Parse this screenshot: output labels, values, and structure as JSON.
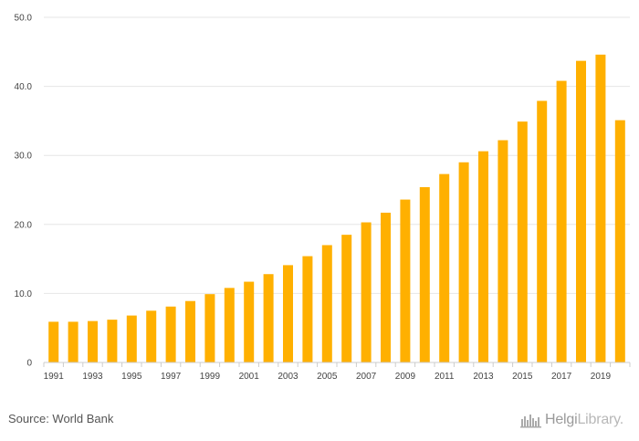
{
  "chart_data": {
    "type": "bar",
    "title": "",
    "xlabel": "",
    "ylabel": "",
    "ylim": [
      0,
      50
    ],
    "y_ticks": [
      "0",
      "10.0",
      "20.0",
      "30.0",
      "40.0",
      "50.0"
    ],
    "y_tick_values": [
      0,
      10,
      20,
      30,
      40,
      50
    ],
    "grid": true,
    "bar_color": "#ffb000",
    "grid_color": "#e6e6e6",
    "categories": [
      "1991",
      "1992",
      "1993",
      "1994",
      "1995",
      "1996",
      "1997",
      "1998",
      "1999",
      "2000",
      "2001",
      "2002",
      "2003",
      "2004",
      "2005",
      "2006",
      "2007",
      "2008",
      "2009",
      "2010",
      "2011",
      "2012",
      "2013",
      "2014",
      "2015",
      "2016",
      "2017",
      "2018",
      "2019",
      "2020"
    ],
    "x_tick_labels": [
      "1991",
      "",
      "1993",
      "",
      "1995",
      "",
      "1997",
      "",
      "1999",
      "",
      "2001",
      "",
      "2003",
      "",
      "2005",
      "",
      "2007",
      "",
      "2009",
      "",
      "2011",
      "",
      "2013",
      "",
      "2015",
      "",
      "2017",
      "",
      "2019",
      ""
    ],
    "values": [
      5.9,
      5.9,
      6.0,
      6.2,
      6.8,
      7.5,
      8.1,
      8.9,
      9.9,
      10.8,
      11.7,
      12.8,
      14.1,
      15.4,
      17.0,
      18.5,
      20.3,
      21.7,
      23.6,
      25.4,
      27.3,
      29.0,
      30.6,
      32.2,
      34.9,
      37.9,
      40.8,
      43.7,
      44.6,
      35.1
    ]
  },
  "footer": {
    "source": "Source: World Bank",
    "brand_bold": "Helgi",
    "brand_light": "Library."
  }
}
